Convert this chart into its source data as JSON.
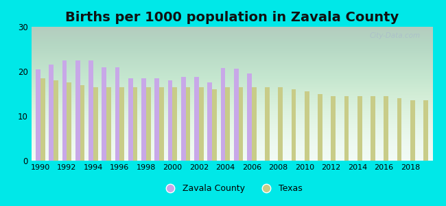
{
  "title": "Births per 1000 population in Zavala County",
  "bg_color": "#00e8e8",
  "zavala_color": "#c8a8e8",
  "texas_color": "#c8cc88",
  "ylim": [
    0,
    30
  ],
  "yticks": [
    0,
    10,
    20,
    30
  ],
  "xtick_years": [
    1990,
    1992,
    1994,
    1996,
    1998,
    2000,
    2002,
    2004,
    2006,
    2008,
    2010,
    2012,
    2014,
    2016,
    2018
  ],
  "legend_labels": [
    "Zavala County",
    "Texas"
  ],
  "title_fontsize": 14,
  "watermark": "City-Data.com",
  "zavala_years": [
    1990,
    1991,
    1992,
    1993,
    1994,
    1995,
    1996,
    1997,
    1998,
    1999,
    2000,
    2001,
    2002,
    2003,
    2004,
    2005,
    2006
  ],
  "zavala_values": [
    20.5,
    21.5,
    22.5,
    22.5,
    22.5,
    21.0,
    21.0,
    18.5,
    18.5,
    18.5,
    18.0,
    18.8,
    18.8,
    17.5,
    20.8,
    20.6,
    19.5
  ],
  "texas_years": [
    1990,
    1991,
    1992,
    1993,
    1994,
    1995,
    1996,
    1997,
    1998,
    1999,
    2000,
    2001,
    2002,
    2003,
    2004,
    2005,
    2006,
    2007,
    2008,
    2009,
    2010,
    2011,
    2012,
    2013,
    2014,
    2015,
    2016,
    2017,
    2018,
    2019
  ],
  "texas_values": [
    18.5,
    18.0,
    17.5,
    17.0,
    16.5,
    16.5,
    16.5,
    16.5,
    16.5,
    16.5,
    16.5,
    16.5,
    16.5,
    16.0,
    16.5,
    16.5,
    16.5,
    16.5,
    16.5,
    16.0,
    15.5,
    15.0,
    14.5,
    14.5,
    14.5,
    14.5,
    14.5,
    14.0,
    13.5,
    13.5
  ]
}
